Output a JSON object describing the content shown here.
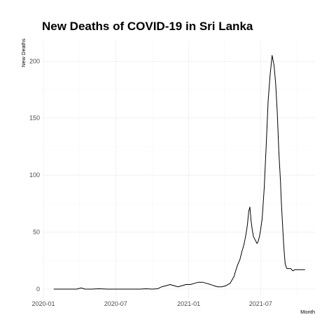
{
  "chart_data": {
    "type": "line",
    "title": "New Deaths of COVID-19 in Sri Lanka",
    "xlabel": "Month",
    "ylabel": "New Deaths",
    "xlim": [
      "2020-01-01",
      "2021-11-15"
    ],
    "ylim": [
      -8,
      218
    ],
    "x_ticks": [
      "2020-01-01",
      "2020-07-01",
      "2021-01-01",
      "2021-07-01"
    ],
    "x_tick_labels": [
      "2020-01",
      "2020-07",
      "2021-01",
      "2021-07"
    ],
    "y_ticks": [
      0,
      50,
      100,
      150,
      200
    ],
    "y_tick_labels": [
      "0",
      "50",
      "100",
      "150",
      "200"
    ],
    "grid": true,
    "legend": "none",
    "series": [
      {
        "color": "#000000",
        "x": [
          "2020-01-27",
          "2020-03-25",
          "2020-04-05",
          "2020-04-15",
          "2020-05-01",
          "2020-05-20",
          "2020-06-10",
          "2020-07-01",
          "2020-08-01",
          "2020-09-01",
          "2020-09-15",
          "2020-10-01",
          "2020-10-15",
          "2020-10-25",
          "2020-11-05",
          "2020-11-15",
          "2020-11-25",
          "2020-12-05",
          "2020-12-15",
          "2020-12-25",
          "2021-01-05",
          "2021-01-15",
          "2021-01-25",
          "2021-02-05",
          "2021-02-15",
          "2021-02-25",
          "2021-03-05",
          "2021-03-15",
          "2021-03-25",
          "2021-04-05",
          "2021-04-15",
          "2021-04-25",
          "2021-05-01",
          "2021-05-05",
          "2021-05-10",
          "2021-05-15",
          "2021-05-20",
          "2021-05-23",
          "2021-05-26",
          "2021-05-29",
          "2021-06-01",
          "2021-06-04",
          "2021-06-07",
          "2021-06-10",
          "2021-06-13",
          "2021-06-16",
          "2021-06-19",
          "2021-06-22",
          "2021-06-25",
          "2021-06-28",
          "2021-07-01",
          "2021-07-05",
          "2021-07-10",
          "2021-07-15",
          "2021-07-20",
          "2021-07-25",
          "2021-07-30",
          "2021-08-04",
          "2021-08-08",
          "2021-08-12",
          "2021-08-16",
          "2021-08-20",
          "2021-08-22",
          "2021-08-24",
          "2021-08-26",
          "2021-08-28",
          "2021-08-30",
          "2021-09-01",
          "2021-09-05",
          "2021-09-10",
          "2021-09-15",
          "2021-09-20",
          "2021-09-25",
          "2021-10-01",
          "2021-10-06",
          "2021-10-11",
          "2021-10-16",
          "2021-10-21"
        ],
        "y": [
          0,
          0,
          1,
          0,
          0,
          0.3,
          0,
          0,
          0,
          0,
          0.3,
          0,
          0.3,
          2,
          3,
          4,
          3,
          2,
          3,
          4,
          4,
          5,
          6,
          6,
          5,
          4,
          3,
          2,
          2,
          3,
          5,
          11,
          18,
          22,
          26,
          33,
          39,
          44,
          50,
          57,
          68,
          72,
          60,
          52,
          46,
          44,
          42,
          40,
          42,
          46,
          52,
          62,
          88,
          125,
          165,
          188,
          205,
          196,
          180,
          155,
          120,
          95,
          78,
          65,
          52,
          40,
          30,
          22,
          18,
          18,
          18,
          16,
          17,
          17,
          17,
          17,
          17,
          17
        ]
      }
    ]
  }
}
